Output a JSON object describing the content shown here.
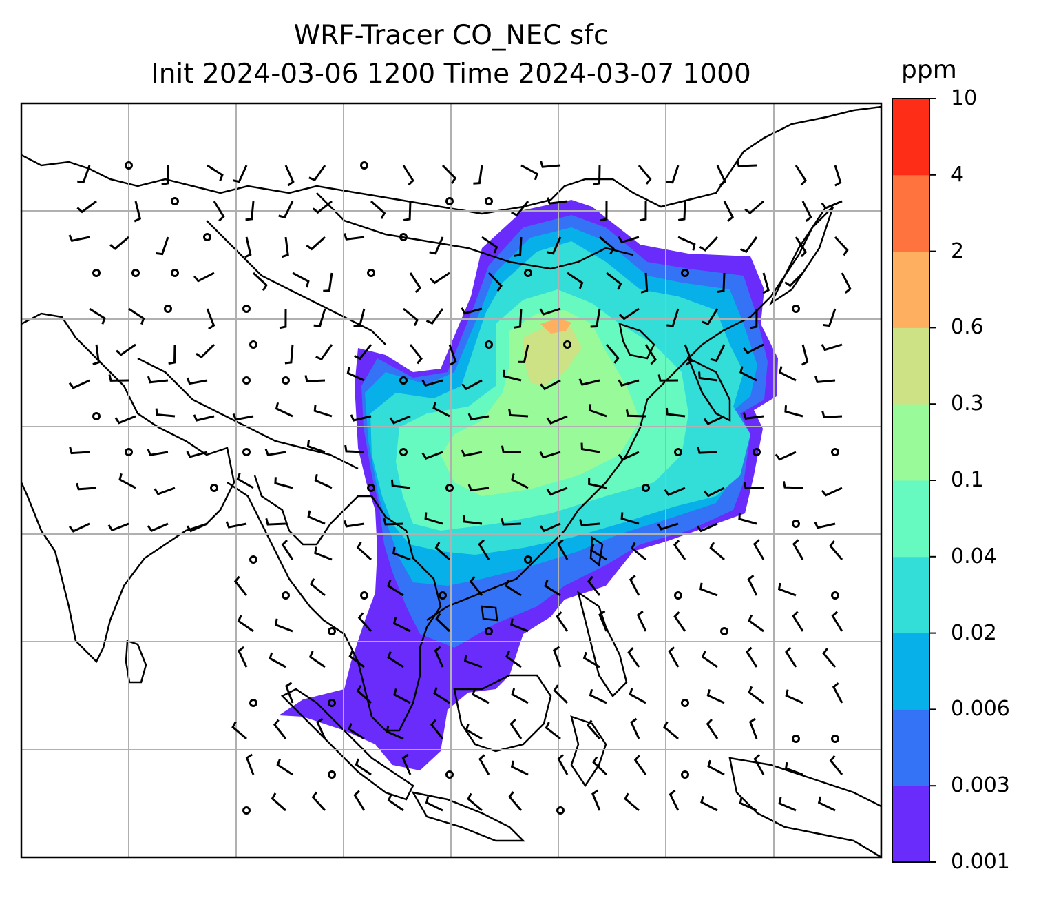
{
  "title": {
    "line1": "WRF-Tracer CO_NEC sfc",
    "line2": "Init 2024-03-06 1200 Time 2024-03-07 1000"
  },
  "colorbar": {
    "unit": "ppm",
    "levels": [
      "0.001",
      "0.003",
      "0.006",
      "0.02",
      "0.04",
      "0.1",
      "0.3",
      "0.6",
      "2",
      "4",
      "10"
    ],
    "colors": [
      "#6a2cfb",
      "#3473f5",
      "#07b0e8",
      "#33ded8",
      "#66f9c0",
      "#98fa98",
      "#cce285",
      "#feaf60",
      "#fe733e",
      "#fd2d17"
    ]
  },
  "map": {
    "gridline_color": "#b0b0b0",
    "coastline_color": "#000000",
    "wind_barbs": true,
    "calm_markers": true
  }
}
